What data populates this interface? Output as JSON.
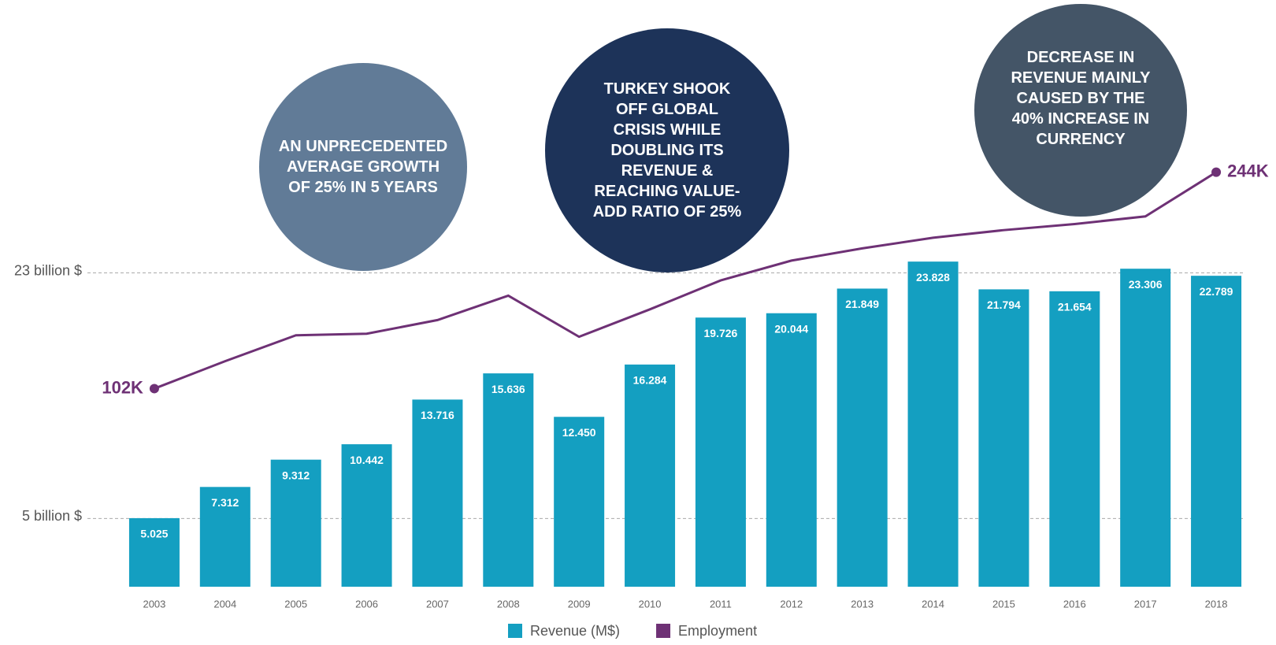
{
  "chart_data": {
    "type": "bar",
    "categories": [
      "2003",
      "2004",
      "2005",
      "2006",
      "2007",
      "2008",
      "2009",
      "2010",
      "2011",
      "2012",
      "2013",
      "2014",
      "2015",
      "2016",
      "2017",
      "2018"
    ],
    "series": [
      {
        "name": "Revenue (M$)",
        "color": "#149fc1",
        "values": [
          5.025,
          7.312,
          9.312,
          10.442,
          13.716,
          15.636,
          12.45,
          16.284,
          19.726,
          20.044,
          21.849,
          23.828,
          21.794,
          21.654,
          23.306,
          22.789
        ],
        "value_labels": [
          "5.025",
          "7.312",
          "9.312",
          "10.442",
          "13.716",
          "15.636",
          "12.450",
          "16.284",
          "19.726",
          "20.044",
          "21.849",
          "23.828",
          "21.794",
          "21.654",
          "23.306",
          "22.789"
        ]
      },
      {
        "name": "Employment",
        "color": "#6e3175",
        "type": "line",
        "axis": "y2",
        "values": [
          102,
          120,
          137,
          138,
          147,
          163,
          136,
          154,
          173,
          186,
          194,
          201,
          206,
          210,
          215,
          244
        ],
        "value_labels": [
          "102K",
          null,
          null,
          null,
          null,
          null,
          null,
          null,
          null,
          null,
          null,
          null,
          null,
          null,
          null,
          "244K"
        ]
      }
    ],
    "ylim": [
      0,
      43
    ],
    "yticks": [
      {
        "value": 5,
        "label": "5 billion $"
      },
      {
        "value": 23,
        "label": "23 billion $"
      }
    ],
    "y2lim": [
      -28,
      357
    ],
    "grid": true,
    "legend": "bottom",
    "annotations": [
      "AN UNPRECEDENTED AVERAGE GROWTH OF 25% IN 5 YEARS",
      "TURKEY SHOOK OFF GLOBAL CRISIS WHILE DOUBLING ITS REVENUE & REACHING VALUE-ADD RATIO OF 25%",
      "DECREASE IN REVENUE MAINLY CAUSED BY THE 40% INCREASE IN CURRENCY"
    ]
  }
}
